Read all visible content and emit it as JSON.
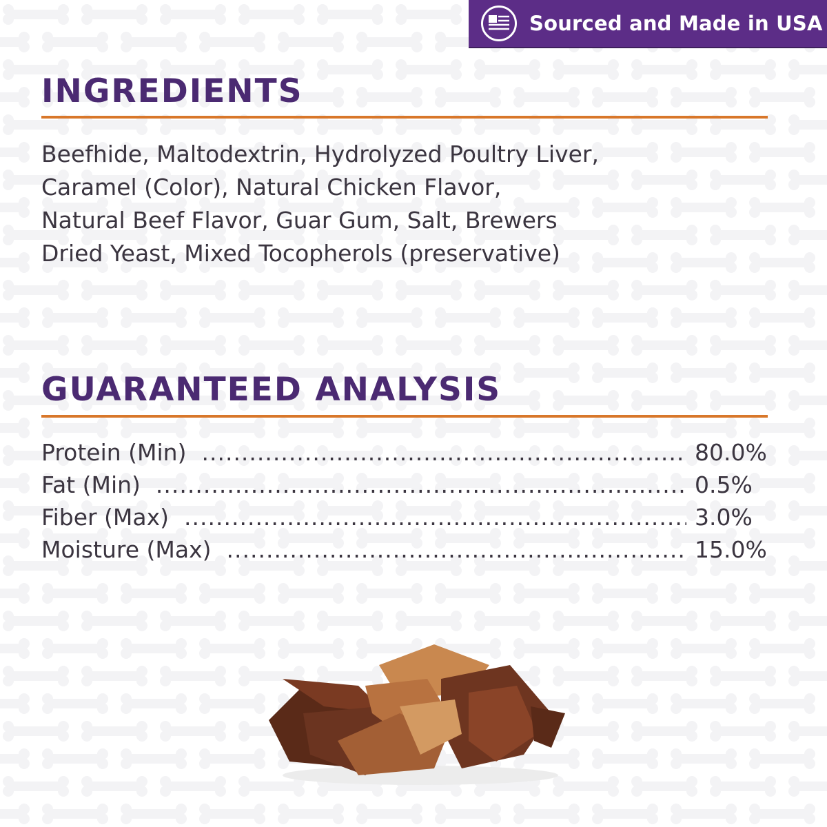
{
  "banner": {
    "text": "Sourced and Made in USA",
    "icon": "usa-flag-icon",
    "color": "#5c2d87"
  },
  "ingredients": {
    "title": "INGREDIENTS",
    "lines": [
      "Beefhide, Maltodextrin, Hydrolyzed Poultry Liver,",
      "Caramel (Color), Natural Chicken Flavor,",
      "Natural Beef Flavor, Guar Gum, Salt, Brewers",
      "Dried Yeast, Mixed Tocopherols (preservative)"
    ]
  },
  "analysis": {
    "title": "GUARANTEED ANALYSIS",
    "rows": [
      {
        "label": "Protein (Min)",
        "value": "80.0%"
      },
      {
        "label": "Fat (Min)",
        "value": "0.5%"
      },
      {
        "label": "Fiber (Max)",
        "value": "3.0%"
      },
      {
        "label": "Moisture (Max)",
        "value": "15.0%"
      }
    ]
  },
  "colors": {
    "heading": "#4b2a72",
    "rule": "#d8772a",
    "text": "#3b3540"
  }
}
